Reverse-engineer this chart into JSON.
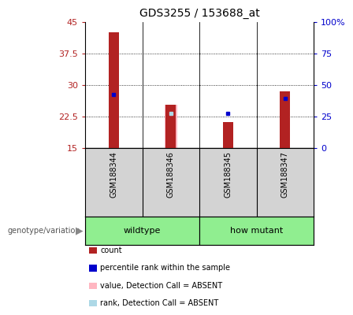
{
  "title": "GDS3255 / 153688_at",
  "samples": [
    "GSM188344",
    "GSM188346",
    "GSM188345",
    "GSM188347"
  ],
  "groups": [
    "wildtype",
    "wildtype",
    "how mutant",
    "how mutant"
  ],
  "ylim": [
    15,
    45
  ],
  "yticks": [
    15,
    22.5,
    30,
    37.5,
    45
  ],
  "ytick_labels": [
    "15",
    "22.5",
    "30",
    "37.5",
    "45"
  ],
  "right_yticks": [
    0,
    25,
    50,
    75,
    100
  ],
  "right_ytick_labels": [
    "0",
    "25",
    "50",
    "75",
    "100%"
  ],
  "bar_bottom": 15,
  "red_bars": {
    "GSM188344": 42.5,
    "GSM188346": 25.3,
    "GSM188345": 21.2,
    "GSM188347": 28.5
  },
  "blue_markers": {
    "GSM188344": 27.8,
    "GSM188346": null,
    "GSM188345": 23.3,
    "GSM188347": 26.8
  },
  "pink_bars": {
    "GSM188344": null,
    "GSM188346": 25.3,
    "GSM188345": null,
    "GSM188347": null
  },
  "light_blue_markers": {
    "GSM188344": null,
    "GSM188346": 23.2,
    "GSM188345": null,
    "GSM188347": null
  },
  "red_color": "#b22222",
  "blue_color": "#0000cc",
  "pink_color": "#ffb6c1",
  "light_blue_color": "#add8e6",
  "background_color": "#ffffff",
  "plot_bg_color": "#ffffff",
  "label_area_bg": "#d3d3d3",
  "group_green": "#90EE90",
  "genotype_label": "genotype/variation",
  "legend_items": [
    {
      "label": "count",
      "color": "#b22222"
    },
    {
      "label": "percentile rank within the sample",
      "color": "#0000cc"
    },
    {
      "label": "value, Detection Call = ABSENT",
      "color": "#ffb6c1"
    },
    {
      "label": "rank, Detection Call = ABSENT",
      "color": "#add8e6"
    }
  ],
  "groups_def": [
    {
      "name": "wildtype",
      "indices": [
        0,
        1
      ]
    },
    {
      "name": "how mutant",
      "indices": [
        2,
        3
      ]
    }
  ]
}
